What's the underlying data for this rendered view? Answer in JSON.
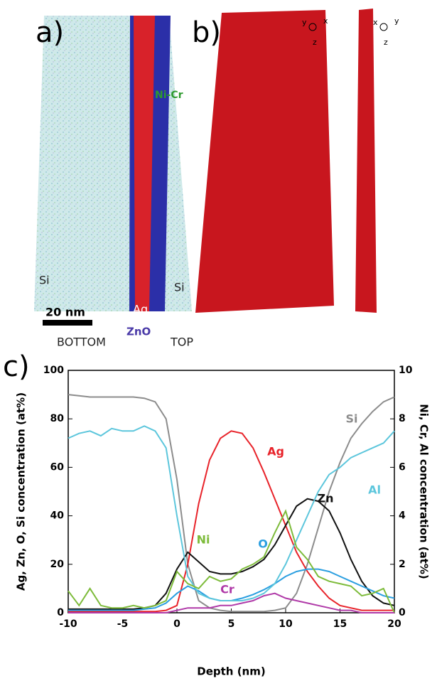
{
  "top_figure": {
    "panel_a_label": "a)",
    "panel_b_label": "b)",
    "annotations": [
      "Ni-Cr",
      "Si",
      "Si",
      "Ag",
      "20 nm",
      "ZnO",
      "BOTTOM",
      "TOP"
    ],
    "axis_glyphs": [
      "y",
      "x",
      "z",
      "x",
      "y",
      "z"
    ]
  },
  "chart_data": {
    "type": "line",
    "panel_label": "c)",
    "x_label": "Depth (nm)",
    "y_label": "Ag, Zn, O, Si concentration (at%)",
    "y2_label": "Ni, Cr, Al concentration (at%)",
    "x": [
      -10,
      -9,
      -8,
      -7,
      -6,
      -5,
      -4,
      -3,
      -2,
      -1,
      0,
      1,
      2,
      3,
      4,
      5,
      6,
      7,
      8,
      9,
      10,
      11,
      12,
      13,
      14,
      15,
      16,
      17,
      18,
      19,
      20
    ],
    "xlim": [
      -10,
      20
    ],
    "xticks": [
      -10,
      -5,
      0,
      5,
      10,
      15,
      20
    ],
    "ylim": [
      0,
      100
    ],
    "yticks": [
      0,
      20,
      40,
      60,
      80,
      100
    ],
    "y2lim": [
      0,
      10
    ],
    "y2ticks": [
      0,
      2,
      4,
      6,
      8,
      10
    ],
    "series": [
      {
        "name": "Si",
        "color": "#8c8c8c",
        "values": [
          90,
          89.5,
          89,
          89,
          89,
          89,
          89,
          88.5,
          87,
          80,
          55,
          20,
          5,
          2,
          1,
          0.5,
          0.5,
          0.5,
          0.5,
          1,
          2,
          8,
          20,
          35,
          50,
          62,
          72,
          78,
          83,
          87,
          89
        ]
      },
      {
        "name": "Ag",
        "color": "#e8232a",
        "values": [
          0.5,
          0.5,
          0.5,
          0.5,
          0.5,
          0.5,
          0.5,
          0.5,
          0.5,
          1,
          3,
          20,
          45,
          63,
          72,
          75,
          74,
          68,
          58,
          47,
          36,
          25,
          17,
          11,
          6,
          3,
          2,
          1,
          1,
          1,
          1
        ]
      },
      {
        "name": "Zn",
        "color": "#111111",
        "values": [
          1.5,
          1.5,
          1.5,
          1.5,
          1.5,
          1.5,
          1.5,
          2,
          3,
          8,
          18,
          25,
          21,
          17,
          16,
          16,
          17,
          19,
          22,
          28,
          36,
          44,
          47,
          46,
          42,
          33,
          22,
          13,
          7,
          4,
          3
        ]
      },
      {
        "name": "O",
        "color": "#2b9fe0",
        "values": [
          1,
          1,
          1,
          1,
          1,
          1,
          1,
          1.5,
          2,
          4,
          8,
          11,
          9,
          6,
          5,
          5,
          6,
          7.5,
          9.5,
          12,
          15,
          17,
          18,
          18,
          17,
          15,
          13,
          11,
          9,
          7,
          6
        ]
      },
      {
        "name": "Al",
        "color": "#5cc6dc",
        "axis": "y2",
        "values": [
          7.2,
          7.4,
          7.5,
          7.3,
          7.6,
          7.5,
          7.5,
          7.7,
          7.5,
          6.8,
          4,
          1.5,
          0.8,
          0.6,
          0.5,
          0.5,
          0.5,
          0.6,
          0.8,
          1.2,
          2,
          3,
          4,
          5,
          5.7,
          6,
          6.4,
          6.6,
          6.8,
          7,
          7.5
        ]
      },
      {
        "name": "Ni",
        "color": "#7dbb3a",
        "axis": "y2",
        "values": [
          0.9,
          0.3,
          1,
          0.3,
          0.2,
          0.2,
          0.3,
          0.2,
          0.3,
          0.5,
          1.7,
          1.2,
          1,
          1.5,
          1.3,
          1.4,
          1.8,
          2,
          2.3,
          3.3,
          4.2,
          2.7,
          2.2,
          1.5,
          1.3,
          1.2,
          1.1,
          0.7,
          0.8,
          1,
          0
        ]
      },
      {
        "name": "Cr",
        "color": "#b03aa8",
        "axis": "y2",
        "values": [
          0,
          0,
          0,
          0,
          0,
          0,
          0,
          0,
          0,
          0,
          0.1,
          0.2,
          0.2,
          0.2,
          0.3,
          0.3,
          0.4,
          0.5,
          0.7,
          0.8,
          0.6,
          0.5,
          0.4,
          0.3,
          0.2,
          0.1,
          0.1,
          0,
          0,
          0,
          0
        ]
      }
    ]
  }
}
